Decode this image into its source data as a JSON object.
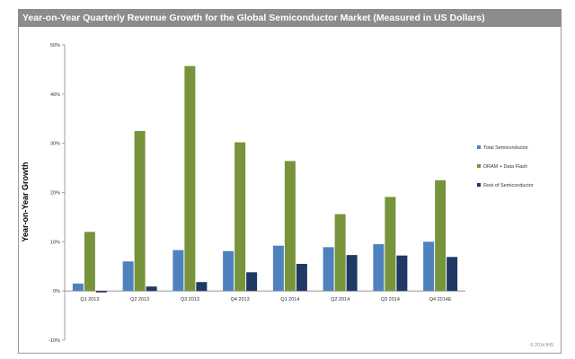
{
  "chart_data": {
    "type": "bar",
    "title": "Year-on-Year Quarterly Revenue Growth for the Global Semiconductor  Market (Measured in US Dollars)",
    "ylabel": "Year-on-Year Growth",
    "xlabel": "",
    "ylim": [
      -10,
      50
    ],
    "yticks": [
      "-10%",
      "0%",
      "10%",
      "20%",
      "30%",
      "40%",
      "50%"
    ],
    "categories": [
      "Q1 2013",
      "Q2 2013",
      "Q3 2013",
      "Q4 2013",
      "Q1 2014",
      "Q2 2014",
      "Q3 2014",
      "Q4 2014E"
    ],
    "series": [
      {
        "name": "Total Semiconductor",
        "color": "#4f81bd",
        "values": [
          1.5,
          6.0,
          8.3,
          8.1,
          9.2,
          8.9,
          9.5,
          10.0
        ]
      },
      {
        "name": "DRAM + Data Flash",
        "color": "#77933c",
        "values": [
          12.0,
          32.5,
          45.7,
          30.2,
          26.4,
          15.6,
          19.1,
          22.5
        ]
      },
      {
        "name": "Rest of Semiconductor",
        "color": "#1f3864",
        "values": [
          -0.3,
          0.9,
          1.8,
          3.8,
          5.5,
          7.3,
          7.2,
          6.9
        ]
      }
    ],
    "legend_position": "right",
    "grid": false
  },
  "credit": "© 2014 IHS"
}
